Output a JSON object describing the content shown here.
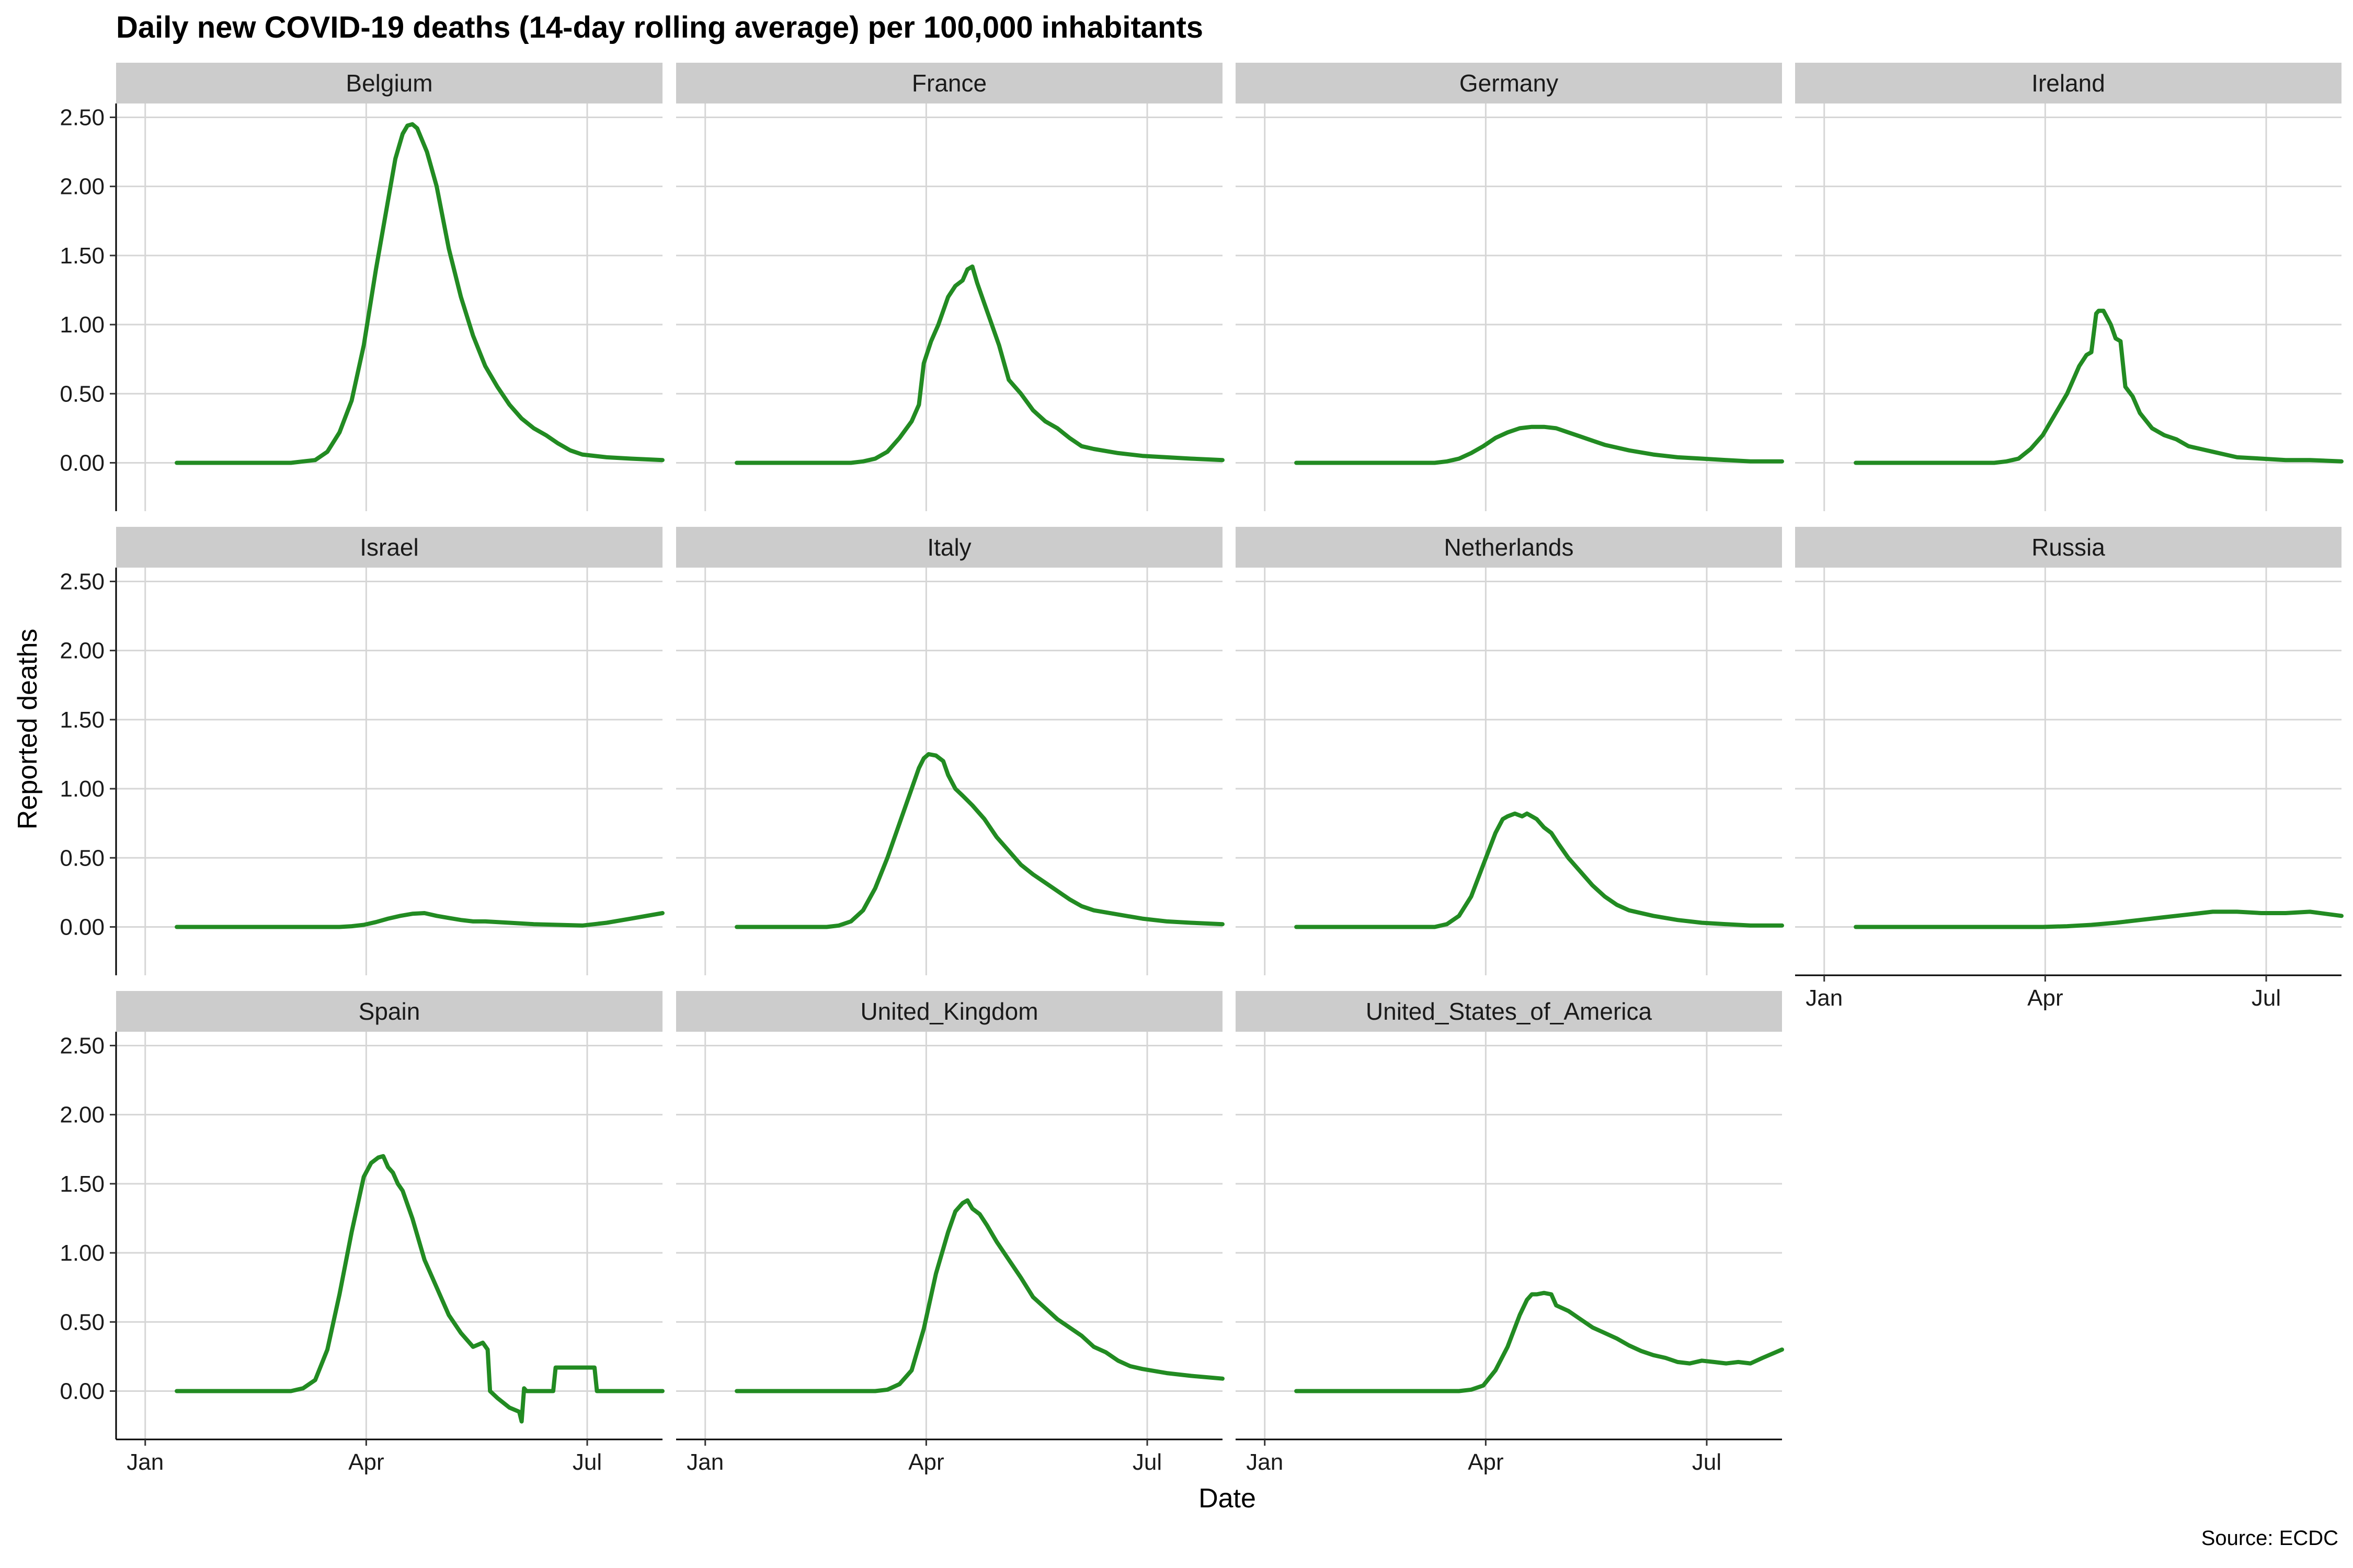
{
  "colors": {
    "line": "#228b22",
    "strip": "#cccccc",
    "grid": "#d6d6d6"
  },
  "chart_data": {
    "type": "line",
    "title": "Daily new COVID-19 deaths (14-day rolling average) per 100,000 inhabitants",
    "xlabel": "Date",
    "ylabel": "Reported deaths",
    "caption": "Source: ECDC",
    "x_ticks": [
      "Jan",
      "Apr",
      "Jul"
    ],
    "x_tick_days": [
      0,
      91,
      182
    ],
    "y_ticks": [
      "0.00",
      "0.50",
      "1.00",
      "1.50",
      "2.00",
      "2.50"
    ],
    "ylim": [
      -0.35,
      2.6
    ],
    "xlim_days": [
      -12,
      213
    ],
    "x_unit": "day of 2020 (Jan 1 = 0)",
    "grid": true,
    "panels": [
      {
        "name": "Belgium",
        "x": [
          13,
          60,
          70,
          75,
          80,
          85,
          90,
          95,
          100,
          103,
          106,
          108,
          110,
          112,
          116,
          120,
          125,
          130,
          135,
          140,
          145,
          150,
          155,
          160,
          165,
          170,
          175,
          180,
          190,
          200,
          213
        ],
        "y": [
          0,
          0,
          0.02,
          0.08,
          0.22,
          0.45,
          0.85,
          1.4,
          1.9,
          2.2,
          2.38,
          2.44,
          2.45,
          2.42,
          2.25,
          2.0,
          1.55,
          1.2,
          0.92,
          0.7,
          0.55,
          0.42,
          0.32,
          0.25,
          0.2,
          0.14,
          0.09,
          0.06,
          0.04,
          0.03,
          0.02
        ]
      },
      {
        "name": "France",
        "x": [
          13,
          60,
          65,
          70,
          75,
          80,
          85,
          88,
          90,
          93,
          96,
          100,
          103,
          106,
          108,
          110,
          112,
          115,
          118,
          121,
          125,
          130,
          135,
          140,
          145,
          150,
          155,
          160,
          170,
          180,
          190,
          200,
          213
        ],
        "y": [
          0,
          0,
          0.01,
          0.03,
          0.08,
          0.18,
          0.3,
          0.42,
          0.72,
          0.88,
          1.0,
          1.2,
          1.28,
          1.32,
          1.4,
          1.42,
          1.3,
          1.15,
          1.0,
          0.85,
          0.6,
          0.5,
          0.38,
          0.3,
          0.25,
          0.18,
          0.12,
          0.1,
          0.07,
          0.05,
          0.04,
          0.03,
          0.02
        ]
      },
      {
        "name": "Germany",
        "x": [
          13,
          70,
          75,
          80,
          85,
          90,
          95,
          100,
          105,
          110,
          115,
          120,
          125,
          130,
          135,
          140,
          145,
          150,
          160,
          170,
          180,
          190,
          200,
          213
        ],
        "y": [
          0,
          0,
          0.01,
          0.03,
          0.07,
          0.12,
          0.18,
          0.22,
          0.25,
          0.26,
          0.26,
          0.25,
          0.22,
          0.19,
          0.16,
          0.13,
          0.11,
          0.09,
          0.06,
          0.04,
          0.03,
          0.02,
          0.01,
          0.01
        ]
      },
      {
        "name": "Ireland",
        "x": [
          13,
          70,
          75,
          80,
          85,
          90,
          95,
          100,
          105,
          108,
          110,
          112,
          113,
          115,
          118,
          120,
          122,
          124,
          127,
          130,
          135,
          140,
          145,
          150,
          155,
          160,
          165,
          170,
          180,
          190,
          200,
          213
        ],
        "y": [
          0,
          0,
          0.01,
          0.03,
          0.1,
          0.2,
          0.35,
          0.5,
          0.7,
          0.78,
          0.8,
          1.08,
          1.1,
          1.1,
          1.0,
          0.9,
          0.88,
          0.55,
          0.48,
          0.36,
          0.25,
          0.2,
          0.17,
          0.12,
          0.1,
          0.08,
          0.06,
          0.04,
          0.03,
          0.02,
          0.02,
          0.01
        ]
      },
      {
        "name": "Israel",
        "x": [
          13,
          80,
          85,
          90,
          95,
          100,
          105,
          110,
          115,
          120,
          125,
          130,
          135,
          140,
          150,
          160,
          170,
          180,
          190,
          200,
          213
        ],
        "y": [
          0,
          0,
          0.005,
          0.015,
          0.035,
          0.06,
          0.08,
          0.095,
          0.1,
          0.08,
          0.065,
          0.05,
          0.04,
          0.04,
          0.03,
          0.02,
          0.015,
          0.01,
          0.03,
          0.06,
          0.1
        ]
      },
      {
        "name": "Italy",
        "x": [
          13,
          50,
          55,
          60,
          65,
          70,
          75,
          80,
          85,
          88,
          90,
          92,
          95,
          98,
          100,
          103,
          106,
          110,
          115,
          120,
          125,
          130,
          135,
          140,
          145,
          150,
          155,
          160,
          170,
          180,
          190,
          200,
          213
        ],
        "y": [
          0,
          0,
          0.01,
          0.04,
          0.12,
          0.28,
          0.5,
          0.75,
          1.0,
          1.15,
          1.22,
          1.25,
          1.24,
          1.2,
          1.1,
          1.0,
          0.95,
          0.88,
          0.78,
          0.65,
          0.55,
          0.45,
          0.38,
          0.32,
          0.26,
          0.2,
          0.15,
          0.12,
          0.09,
          0.06,
          0.04,
          0.03,
          0.02
        ]
      },
      {
        "name": "Netherlands",
        "x": [
          13,
          70,
          75,
          80,
          85,
          90,
          95,
          98,
          100,
          103,
          106,
          108,
          110,
          112,
          115,
          118,
          121,
          125,
          130,
          135,
          140,
          145,
          150,
          160,
          170,
          180,
          190,
          200,
          213
        ],
        "y": [
          0,
          0,
          0.02,
          0.08,
          0.22,
          0.45,
          0.68,
          0.78,
          0.8,
          0.82,
          0.8,
          0.82,
          0.8,
          0.78,
          0.72,
          0.68,
          0.6,
          0.5,
          0.4,
          0.3,
          0.22,
          0.16,
          0.12,
          0.08,
          0.05,
          0.03,
          0.02,
          0.01,
          0.01
        ]
      },
      {
        "name": "Russia",
        "x": [
          13,
          90,
          100,
          110,
          120,
          130,
          140,
          150,
          160,
          170,
          180,
          190,
          200,
          213
        ],
        "y": [
          0,
          0,
          0.005,
          0.015,
          0.03,
          0.05,
          0.07,
          0.09,
          0.11,
          0.11,
          0.1,
          0.1,
          0.11,
          0.08
        ]
      },
      {
        "name": "Spain",
        "x": [
          13,
          60,
          65,
          70,
          75,
          80,
          85,
          90,
          93,
          96,
          98,
          100,
          102,
          104,
          106,
          110,
          115,
          120,
          125,
          130,
          135,
          139,
          141,
          142,
          145,
          150,
          154,
          155,
          156,
          157,
          162,
          168,
          169,
          170,
          172,
          185,
          186,
          190,
          200,
          213
        ],
        "y": [
          0,
          0,
          0.02,
          0.08,
          0.3,
          0.7,
          1.15,
          1.55,
          1.65,
          1.69,
          1.7,
          1.62,
          1.58,
          1.5,
          1.45,
          1.25,
          0.95,
          0.75,
          0.55,
          0.42,
          0.32,
          0.35,
          0.3,
          0.0,
          -0.05,
          -0.12,
          -0.15,
          -0.22,
          0.02,
          0.0,
          0.0,
          0.0,
          0.17,
          0.17,
          0.17,
          0.17,
          0.0,
          0.0,
          0.0,
          0.0
        ]
      },
      {
        "name": "United_Kingdom",
        "x": [
          13,
          70,
          75,
          80,
          85,
          90,
          95,
          100,
          103,
          106,
          108,
          110,
          113,
          116,
          120,
          125,
          130,
          135,
          140,
          145,
          150,
          155,
          160,
          165,
          170,
          175,
          180,
          190,
          200,
          213
        ],
        "y": [
          0,
          0,
          0.01,
          0.05,
          0.15,
          0.45,
          0.85,
          1.15,
          1.3,
          1.36,
          1.38,
          1.32,
          1.28,
          1.2,
          1.08,
          0.95,
          0.82,
          0.68,
          0.6,
          0.52,
          0.46,
          0.4,
          0.32,
          0.28,
          0.22,
          0.18,
          0.16,
          0.13,
          0.11,
          0.09
        ]
      },
      {
        "name": "United_States_of_America",
        "x": [
          13,
          80,
          85,
          90,
          95,
          100,
          105,
          108,
          110,
          112,
          115,
          118,
          120,
          125,
          130,
          135,
          140,
          145,
          150,
          155,
          160,
          165,
          170,
          175,
          180,
          185,
          190,
          195,
          200,
          205,
          213
        ],
        "y": [
          0,
          0,
          0.01,
          0.04,
          0.15,
          0.32,
          0.55,
          0.66,
          0.7,
          0.7,
          0.71,
          0.7,
          0.62,
          0.58,
          0.52,
          0.46,
          0.42,
          0.38,
          0.33,
          0.29,
          0.26,
          0.24,
          0.21,
          0.2,
          0.22,
          0.21,
          0.2,
          0.21,
          0.2,
          0.24,
          0.3
        ]
      }
    ]
  }
}
